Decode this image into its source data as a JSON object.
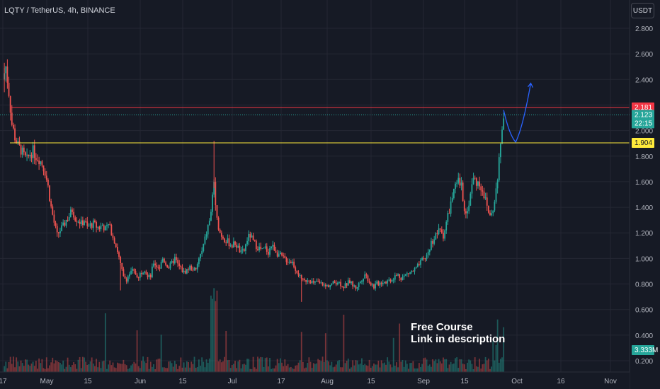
{
  "header": {
    "symbol": "LQTY / TetherUS, 4h, BINANCE",
    "currency": "USDT"
  },
  "annotation": {
    "line1": "Free Course",
    "line2": "Link in description"
  },
  "colors": {
    "background": "#161a25",
    "up": "#26a69a",
    "down": "#ef5350",
    "resistance": "#f23645",
    "support": "#ffeb3b",
    "projection": "#2962ff"
  },
  "chart_data": {
    "type": "candlestick",
    "symbol": "LQTY / TetherUS",
    "interval": "4h",
    "exchange": "BINANCE",
    "y_axis": {
      "ticks": [
        "2.800",
        "2.600",
        "2.400",
        "2.200",
        "2.000",
        "1.800",
        "1.600",
        "1.400",
        "1.200",
        "1.000",
        "0.800",
        "0.600",
        "0.400",
        "0.200"
      ],
      "range": [
        0.1,
        2.9
      ]
    },
    "x_axis": {
      "ticks": [
        "17",
        "May",
        "15",
        "Jun",
        "15",
        "Jul",
        "17",
        "Aug",
        "15",
        "Sep",
        "15",
        "Oct",
        "16",
        "Nov"
      ],
      "range_days": [
        0,
        201
      ]
    },
    "close_path": [
      [
        0,
        2.4
      ],
      [
        1,
        2.5
      ],
      [
        2,
        2.3
      ],
      [
        3,
        2.05
      ],
      [
        4,
        1.95
      ],
      [
        5,
        1.88
      ],
      [
        6,
        1.85
      ],
      [
        7,
        1.8
      ],
      [
        8,
        1.77
      ],
      [
        9,
        1.82
      ],
      [
        10,
        1.84
      ],
      [
        11,
        1.8
      ],
      [
        12,
        1.78
      ],
      [
        13,
        1.74
      ],
      [
        14,
        1.68
      ],
      [
        15,
        1.56
      ],
      [
        16,
        1.4
      ],
      [
        17,
        1.28
      ],
      [
        18,
        1.18
      ],
      [
        19,
        1.22
      ],
      [
        20,
        1.25
      ],
      [
        21,
        1.3
      ],
      [
        22,
        1.33
      ],
      [
        23,
        1.38
      ],
      [
        24,
        1.32
      ],
      [
        25,
        1.3
      ],
      [
        26,
        1.27
      ],
      [
        27,
        1.3
      ],
      [
        28,
        1.24
      ],
      [
        29,
        1.26
      ],
      [
        30,
        1.27
      ],
      [
        31,
        1.25
      ],
      [
        32,
        1.24
      ],
      [
        33,
        1.26
      ],
      [
        34,
        1.23
      ],
      [
        35,
        1.26
      ],
      [
        36,
        1.21
      ],
      [
        37,
        1.14
      ],
      [
        38,
        1.06
      ],
      [
        39,
        0.95
      ],
      [
        40,
        0.85
      ],
      [
        41,
        0.84
      ],
      [
        42,
        0.88
      ],
      [
        43,
        0.9
      ],
      [
        44,
        0.88
      ],
      [
        45,
        0.86
      ],
      [
        46,
        0.9
      ],
      [
        47,
        0.92
      ],
      [
        48,
        0.85
      ],
      [
        49,
        0.86
      ],
      [
        50,
        0.97
      ],
      [
        51,
        0.94
      ],
      [
        52,
        0.93
      ],
      [
        53,
        1.0
      ],
      [
        54,
        0.96
      ],
      [
        55,
        0.93
      ],
      [
        56,
        0.96
      ],
      [
        57,
        1.0
      ],
      [
        58,
        0.95
      ],
      [
        59,
        0.92
      ],
      [
        60,
        0.89
      ],
      [
        61,
        0.91
      ],
      [
        62,
        0.93
      ],
      [
        63,
        0.92
      ],
      [
        64,
        0.9
      ],
      [
        65,
        1.0
      ],
      [
        66,
        1.05
      ],
      [
        67,
        1.15
      ],
      [
        68,
        1.25
      ],
      [
        69,
        1.35
      ],
      [
        70,
        1.6
      ],
      [
        71,
        1.3
      ],
      [
        72,
        1.2
      ],
      [
        73,
        1.17
      ],
      [
        74,
        1.14
      ],
      [
        75,
        1.12
      ],
      [
        76,
        1.1
      ],
      [
        77,
        1.12
      ],
      [
        78,
        1.08
      ],
      [
        79,
        1.04
      ],
      [
        80,
        1.06
      ],
      [
        81,
        1.15
      ],
      [
        82,
        1.18
      ],
      [
        83,
        1.13
      ],
      [
        84,
        1.1
      ],
      [
        85,
        1.08
      ],
      [
        86,
        1.06
      ],
      [
        87,
        1.08
      ],
      [
        88,
        1.05
      ],
      [
        89,
        1.1
      ],
      [
        90,
        1.08
      ],
      [
        91,
        1.04
      ],
      [
        92,
        1.02
      ],
      [
        93,
        1.0
      ],
      [
        94,
        0.99
      ],
      [
        95,
        0.98
      ],
      [
        96,
        0.97
      ],
      [
        97,
        0.92
      ],
      [
        98,
        0.88
      ],
      [
        99,
        0.82
      ],
      [
        100,
        0.82
      ],
      [
        101,
        0.84
      ],
      [
        102,
        0.83
      ],
      [
        103,
        0.8
      ],
      [
        104,
        0.82
      ],
      [
        105,
        0.8
      ],
      [
        106,
        0.8
      ],
      [
        107,
        0.78
      ],
      [
        108,
        0.79
      ],
      [
        109,
        0.8
      ],
      [
        110,
        0.81
      ],
      [
        111,
        0.82
      ],
      [
        112,
        0.8
      ],
      [
        113,
        0.78
      ],
      [
        114,
        0.8
      ],
      [
        115,
        0.82
      ],
      [
        116,
        0.79
      ],
      [
        117,
        0.77
      ],
      [
        118,
        0.8
      ],
      [
        119,
        0.84
      ],
      [
        120,
        0.88
      ],
      [
        121,
        0.84
      ],
      [
        122,
        0.8
      ],
      [
        123,
        0.78
      ],
      [
        124,
        0.8
      ],
      [
        125,
        0.81
      ],
      [
        126,
        0.82
      ],
      [
        127,
        0.82
      ],
      [
        128,
        0.83
      ],
      [
        129,
        0.84
      ],
      [
        130,
        0.86
      ],
      [
        131,
        0.87
      ],
      [
        132,
        0.85
      ],
      [
        133,
        0.86
      ],
      [
        134,
        0.88
      ],
      [
        135,
        0.89
      ],
      [
        136,
        0.9
      ],
      [
        137,
        0.92
      ],
      [
        138,
        0.95
      ],
      [
        139,
        0.98
      ],
      [
        140,
        1.0
      ],
      [
        141,
        1.05
      ],
      [
        142,
        1.12
      ],
      [
        143,
        1.16
      ],
      [
        144,
        1.2
      ],
      [
        145,
        1.22
      ],
      [
        146,
        1.18
      ],
      [
        147,
        1.28
      ],
      [
        148,
        1.38
      ],
      [
        149,
        1.48
      ],
      [
        150,
        1.55
      ],
      [
        151,
        1.6
      ],
      [
        152,
        1.56
      ],
      [
        153,
        1.4
      ],
      [
        154,
        1.36
      ],
      [
        155,
        1.52
      ],
      [
        156,
        1.62
      ],
      [
        157,
        1.6
      ],
      [
        158,
        1.58
      ],
      [
        159,
        1.54
      ],
      [
        160,
        1.45
      ],
      [
        161,
        1.36
      ],
      [
        162,
        1.34
      ],
      [
        163,
        1.45
      ],
      [
        164,
        1.62
      ],
      [
        165,
        1.9
      ],
      [
        166,
        2.12
      ]
    ],
    "levels": [
      {
        "price": 2.181,
        "label": "2.181",
        "color": "#f23645"
      },
      {
        "price": 1.904,
        "label": "1.904",
        "color": "#ffeb3b"
      }
    ],
    "last_price": {
      "price": 2.123,
      "label": "2.123",
      "countdown": "22:15"
    },
    "volume_label": "3.333M",
    "projection": [
      [
        166,
        2.16
      ],
      [
        170,
        1.91
      ],
      [
        175,
        2.37
      ]
    ]
  }
}
